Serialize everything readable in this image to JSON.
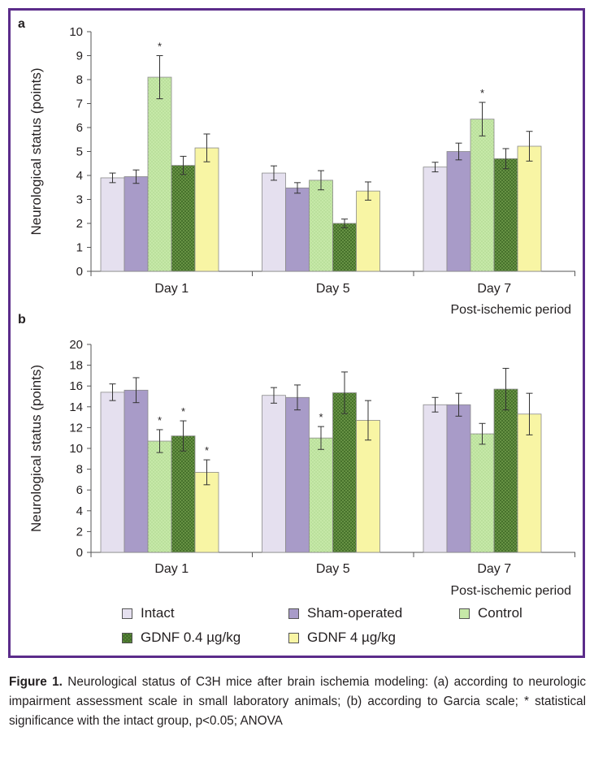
{
  "chart_data": [
    {
      "panel_label": "a",
      "type": "bar",
      "ylabel": "Neurological status (points)",
      "xlabel": "Post-ischemic period",
      "ylim": [
        0,
        10
      ],
      "yticks": [
        0,
        1,
        2,
        3,
        4,
        5,
        6,
        7,
        8,
        9,
        10
      ],
      "categories": [
        "Day 1",
        "Day 5",
        "Day 7"
      ],
      "series": [
        {
          "name": "Intact",
          "values": [
            3.9,
            4.1,
            4.35
          ],
          "errors": [
            0.2,
            0.3,
            0.2
          ],
          "significant": [
            false,
            false,
            false
          ]
        },
        {
          "name": "Sham-operated",
          "values": [
            3.95,
            3.48,
            5.0
          ],
          "errors": [
            0.28,
            0.22,
            0.35
          ],
          "significant": [
            false,
            false,
            false
          ]
        },
        {
          "name": "Control",
          "values": [
            8.1,
            3.8,
            6.35
          ],
          "errors": [
            0.9,
            0.4,
            0.7
          ],
          "significant": [
            true,
            false,
            true
          ]
        },
        {
          "name": "GDNF 0.4 µg/kg",
          "values": [
            4.42,
            2.0,
            4.7
          ],
          "errors": [
            0.38,
            0.18,
            0.42
          ],
          "significant": [
            false,
            false,
            false
          ]
        },
        {
          "name": "GDNF 4  µg/kg",
          "values": [
            5.15,
            3.35,
            5.22
          ],
          "errors": [
            0.58,
            0.38,
            0.62
          ],
          "significant": [
            false,
            false,
            false
          ]
        }
      ]
    },
    {
      "panel_label": "b",
      "type": "bar",
      "ylabel": "Neurological status (points)",
      "xlabel": "Post-ischemic period",
      "ylim": [
        0,
        20
      ],
      "yticks": [
        0,
        2,
        4,
        6,
        8,
        10,
        12,
        14,
        16,
        18,
        20
      ],
      "categories": [
        "Day 1",
        "Day 5",
        "Day 7"
      ],
      "series": [
        {
          "name": "Intact",
          "values": [
            15.4,
            15.1,
            14.2
          ],
          "errors": [
            0.8,
            0.75,
            0.7
          ],
          "significant": [
            false,
            false,
            false
          ]
        },
        {
          "name": "Sham-operated",
          "values": [
            15.6,
            14.9,
            14.2
          ],
          "errors": [
            1.2,
            1.2,
            1.1
          ],
          "significant": [
            false,
            false,
            false
          ]
        },
        {
          "name": "Control",
          "values": [
            10.7,
            11.0,
            11.4
          ],
          "errors": [
            1.1,
            1.1,
            1.0
          ],
          "significant": [
            true,
            true,
            false
          ]
        },
        {
          "name": "GDNF 0.4 µg/kg",
          "values": [
            11.2,
            15.35,
            15.7
          ],
          "errors": [
            1.45,
            2.0,
            2.0
          ],
          "significant": [
            true,
            false,
            false
          ]
        },
        {
          "name": "GDNF 4  µg/kg",
          "values": [
            7.7,
            12.7,
            13.3
          ],
          "errors": [
            1.2,
            1.9,
            2.0
          ],
          "significant": [
            true,
            false,
            false
          ]
        }
      ]
    }
  ],
  "significance_marker": "*",
  "legend": {
    "items": [
      {
        "label": "Intact",
        "color": "#e5e0ef",
        "pattern": "none"
      },
      {
        "label": "Sham-operated",
        "color": "#a89bc8",
        "pattern": "none"
      },
      {
        "label": "Control",
        "color": "#c6e8a8",
        "pattern": "light-dots"
      },
      {
        "label": "GDNF 0.4 µg/kg",
        "color": "#5d8a3c",
        "pattern": "crosshatch"
      },
      {
        "label": "GDNF 4  µg/kg",
        "color": "#f8f5a4",
        "pattern": "none"
      }
    ]
  },
  "caption": {
    "label": "Figure 1.",
    "text": "Neurological status of C3H mice after brain ischemia modeling: (a) according to neurologic impairment assessment scale in small laboratory animals; (b) according to Garcia scale; * statistical significance with the intact group, p<0.05; ANOVA"
  },
  "colors": {
    "frame": "#5b2c8a",
    "bar_outline": "#777777",
    "axis": "#555555"
  }
}
